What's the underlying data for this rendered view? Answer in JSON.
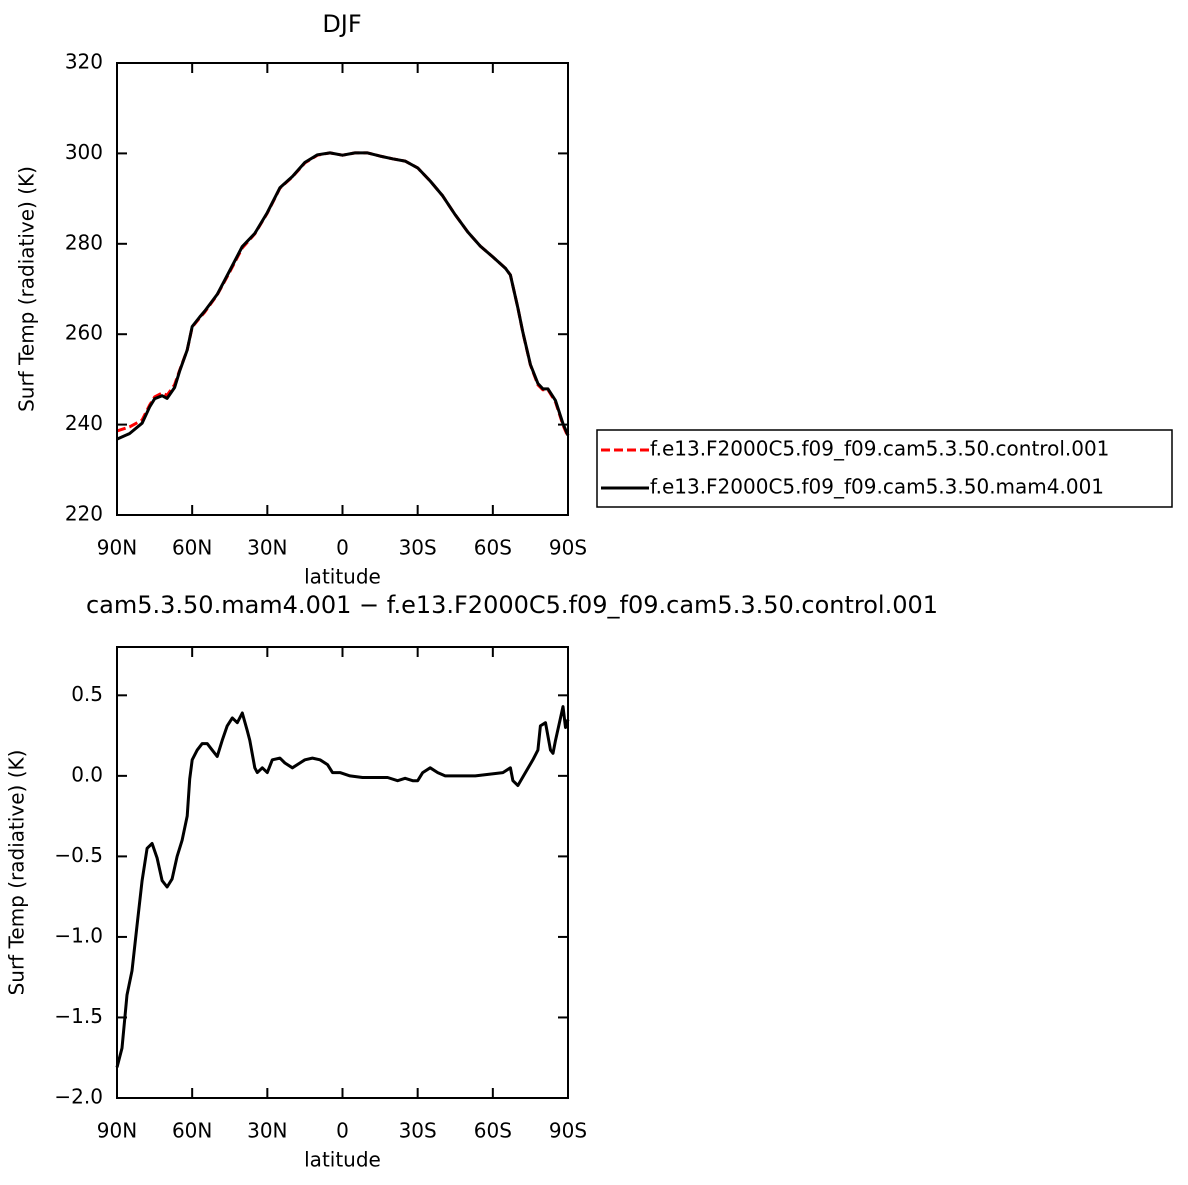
{
  "chart_data": [
    {
      "type": "line",
      "title": "DJF",
      "xlabel": "latitude",
      "ylabel": "Surf Temp (radiative) (K)",
      "xlim": [
        90,
        -90
      ],
      "xticks": [
        {
          "value": 90,
          "label": "90N"
        },
        {
          "value": 60,
          "label": "60N"
        },
        {
          "value": 30,
          "label": "30N"
        },
        0,
        {
          "value": -30,
          "label": "30S"
        },
        {
          "value": -60,
          "label": "60S"
        },
        {
          "value": -90,
          "label": "90S"
        }
      ],
      "ylim": [
        220,
        320
      ],
      "yticks": [
        220,
        240,
        260,
        280,
        300,
        320
      ],
      "legend": "right",
      "x": [
        90,
        85,
        80,
        77,
        75,
        72,
        70,
        67,
        65,
        62,
        60,
        57,
        55,
        50,
        45,
        40,
        35,
        30,
        25,
        20,
        15,
        10,
        5,
        0,
        -5,
        -10,
        -15,
        -20,
        -25,
        -30,
        -35,
        -40,
        -45,
        -50,
        -55,
        -60,
        -65,
        -67,
        -70,
        -72,
        -75,
        -78,
        -80,
        -82,
        -85,
        -88,
        -90
      ],
      "series": [
        {
          "name": "f.e13.F2000C5.f09_f09.cam5.3.50.control.001",
          "color": "#ff0000",
          "dashed": true,
          "values": [
            238.6,
            239.5,
            241,
            244.3,
            246.1,
            247,
            246.5,
            248.8,
            252,
            256.5,
            261.6,
            263.6,
            264.9,
            268.7,
            273.8,
            279.1,
            282.2,
            286.8,
            292.3,
            294.8,
            297.9,
            299.6,
            300.1,
            299.6,
            300.1,
            300.1,
            299.4,
            298.8,
            298.3,
            296.8,
            293.9,
            290.6,
            286.4,
            282.6,
            279.5,
            277.1,
            274.6,
            273.1,
            265.8,
            260.3,
            253.2,
            248.8,
            247.7,
            247.7,
            245,
            239.9,
            237.3
          ]
        },
        {
          "name": "f.e13.F2000C5.f09_f09.cam5.3.50.mam4.001",
          "color": "#000000",
          "dashed": false,
          "values": [
            236.8,
            238,
            240.3,
            243.9,
            245.7,
            246.4,
            245.8,
            248.2,
            251.8,
            256.5,
            261.7,
            263.8,
            265.1,
            268.8,
            274.1,
            279.4,
            282.3,
            286.9,
            292.4,
            294.9,
            298,
            299.7,
            300.1,
            299.6,
            300.1,
            300.1,
            299.4,
            298.8,
            298.3,
            296.8,
            293.9,
            290.6,
            286.4,
            282.6,
            279.5,
            277.1,
            274.6,
            273.1,
            265.8,
            260.4,
            253.3,
            249.1,
            247.9,
            247.9,
            245.3,
            240.2,
            237.6
          ]
        }
      ]
    },
    {
      "type": "line",
      "title": "cam5.3.50.mam4.001 − f.e13.F2000C5.f09_f09.cam5.3.50.control.001",
      "xlabel": "latitude",
      "ylabel": "Surf Temp (radiative) (K)",
      "xlim": [
        90,
        -90
      ],
      "xticks": [
        {
          "value": 90,
          "label": "90N"
        },
        {
          "value": 60,
          "label": "60N"
        },
        {
          "value": 30,
          "label": "30N"
        },
        0,
        {
          "value": -30,
          "label": "30S"
        },
        {
          "value": -60,
          "label": "60S"
        },
        {
          "value": -90,
          "label": "90S"
        }
      ],
      "ylim": [
        -2.0,
        0.8
      ],
      "yticks": [
        {
          "value": -2,
          "label": "−2.0"
        },
        {
          "value": -1.5,
          "label": "−1.5"
        },
        {
          "value": -1,
          "label": "−1.0"
        },
        {
          "value": -0.5,
          "label": "−0.5"
        },
        {
          "value": 0,
          "label": "0.0"
        },
        0.5
      ],
      "x": [
        90,
        88,
        86,
        84,
        82,
        80,
        78,
        76,
        74,
        72,
        70,
        68,
        66,
        64,
        62,
        61,
        60,
        58,
        56,
        54,
        52,
        50,
        48,
        46,
        44,
        42,
        40,
        38,
        37,
        35,
        34,
        32,
        30,
        28,
        25,
        23,
        20,
        17,
        15,
        12,
        9,
        6,
        4,
        1,
        -3,
        -8,
        -13,
        -18,
        -22,
        -25,
        -28,
        -30,
        -32,
        -35,
        -38,
        -41,
        -53,
        -64,
        -67,
        -68,
        -70,
        -73,
        -76,
        -78,
        -79,
        -81,
        -83,
        -84,
        -85,
        -87,
        -88,
        -89,
        -90
      ],
      "color": "#000000",
      "values": [
        -1.81,
        -1.69,
        -1.36,
        -1.21,
        -0.93,
        -0.65,
        -0.45,
        -0.42,
        -0.51,
        -0.65,
        -0.69,
        -0.64,
        -0.5,
        -0.4,
        -0.25,
        -0.02,
        0.1,
        0.16,
        0.2,
        0.2,
        0.16,
        0.12,
        0.22,
        0.31,
        0.36,
        0.33,
        0.39,
        0.28,
        0.22,
        0.05,
        0.02,
        0.05,
        0.02,
        0.1,
        0.11,
        0.08,
        0.05,
        0.08,
        0.1,
        0.11,
        0.1,
        0.07,
        0.02,
        0.02,
        0,
        -0.01,
        -0.01,
        -0.01,
        -0.03,
        -0.015,
        -0.03,
        -0.03,
        0.02,
        0.05,
        0.02,
        0,
        0,
        0.02,
        0.05,
        -0.03,
        -0.06,
        0.02,
        0.1,
        0.16,
        0.31,
        0.33,
        0.16,
        0.14,
        0.22,
        0.36,
        0.43,
        0.3,
        0.35
      ]
    }
  ]
}
